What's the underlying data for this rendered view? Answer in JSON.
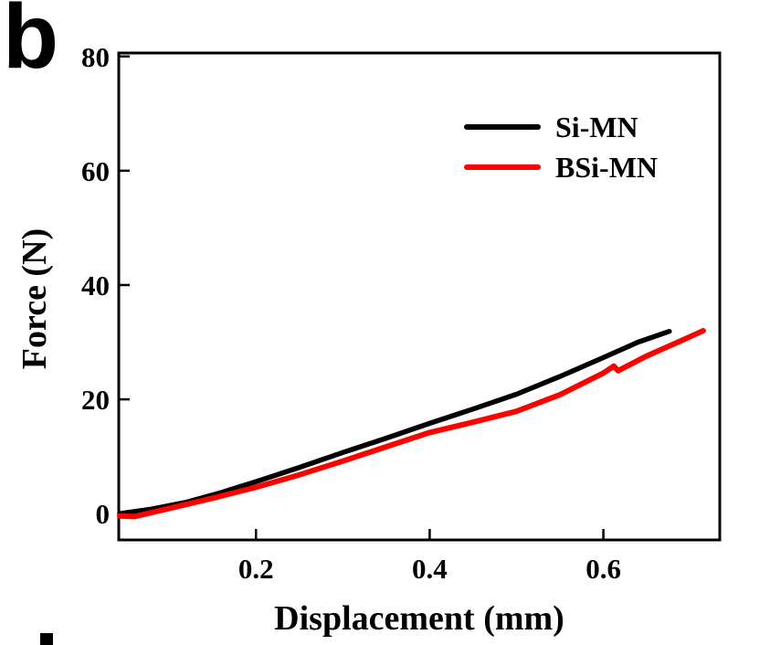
{
  "panel_label": "b",
  "colors": {
    "background": "#ffffff",
    "axis": "#000000",
    "si_mn": "#000000",
    "bsi_mn": "#ff0000"
  },
  "partial_glyph_note": "top edge of a cropped letter from the next figure panel",
  "chart_data": {
    "type": "line",
    "title": "",
    "xlabel": "Displacement (mm)",
    "ylabel": "Force (N)",
    "xlim": [
      0.042,
      0.734
    ],
    "ylim": [
      -4.6,
      80.6
    ],
    "x_ticks": [
      0.2,
      0.4,
      0.6
    ],
    "x_tick_labels": [
      "0.2",
      "0.4",
      "0.6"
    ],
    "y_ticks": [
      0,
      20,
      40,
      60,
      80
    ],
    "y_tick_labels": [
      "0",
      "20",
      "40",
      "60",
      "80"
    ],
    "grid": false,
    "legend_position": "upper-right-inside",
    "series": [
      {
        "name": "Si-MN",
        "color": "#000000",
        "line_width": 5.5,
        "x": [
          0.043,
          0.08,
          0.12,
          0.16,
          0.2,
          0.25,
          0.3,
          0.35,
          0.4,
          0.45,
          0.5,
          0.55,
          0.6,
          0.64,
          0.676
        ],
        "y": [
          0.0,
          0.8,
          2.0,
          3.7,
          5.6,
          8.1,
          10.7,
          13.2,
          15.8,
          18.3,
          20.9,
          24.0,
          27.3,
          30.0,
          31.9
        ]
      },
      {
        "name": "BSi-MN",
        "color": "#ff0000",
        "line_width": 6,
        "x": [
          0.043,
          0.06,
          0.1,
          0.15,
          0.2,
          0.25,
          0.3,
          0.35,
          0.4,
          0.45,
          0.5,
          0.55,
          0.6,
          0.612,
          0.617,
          0.65,
          0.69,
          0.715
        ],
        "y": [
          -0.4,
          -0.5,
          0.9,
          2.7,
          4.6,
          6.8,
          9.2,
          11.7,
          14.2,
          16.0,
          17.9,
          20.8,
          24.6,
          25.8,
          25.0,
          27.6,
          30.3,
          32.0
        ]
      }
    ]
  }
}
